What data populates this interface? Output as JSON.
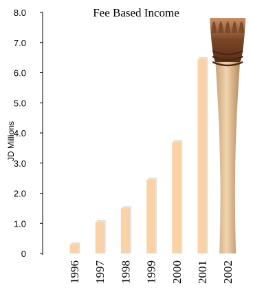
{
  "chart_data": {
    "type": "bar",
    "title": "Fee Based Income",
    "xlabel": "",
    "ylabel": "JD Millions",
    "categories": [
      "1996",
      "1997",
      "1998",
      "1999",
      "2000",
      "2001",
      "2002"
    ],
    "values": [
      0.3,
      1.05,
      1.5,
      2.45,
      3.7,
      6.45,
      8.0
    ],
    "ylim": [
      0,
      8
    ],
    "yticks": [
      "0",
      "1.0",
      "2.0",
      "3.0",
      "4.0",
      "5.0",
      "6.0",
      "7.0",
      "8.0"
    ],
    "grid": false,
    "legend": "none",
    "bar_color": "#fbd2a6",
    "bar_shadow_color": "#e3e1df",
    "highlight_bar_color": "#d9b58a",
    "highlight_bar_dark": "#7a4a2a",
    "highlight_category": "2002"
  }
}
